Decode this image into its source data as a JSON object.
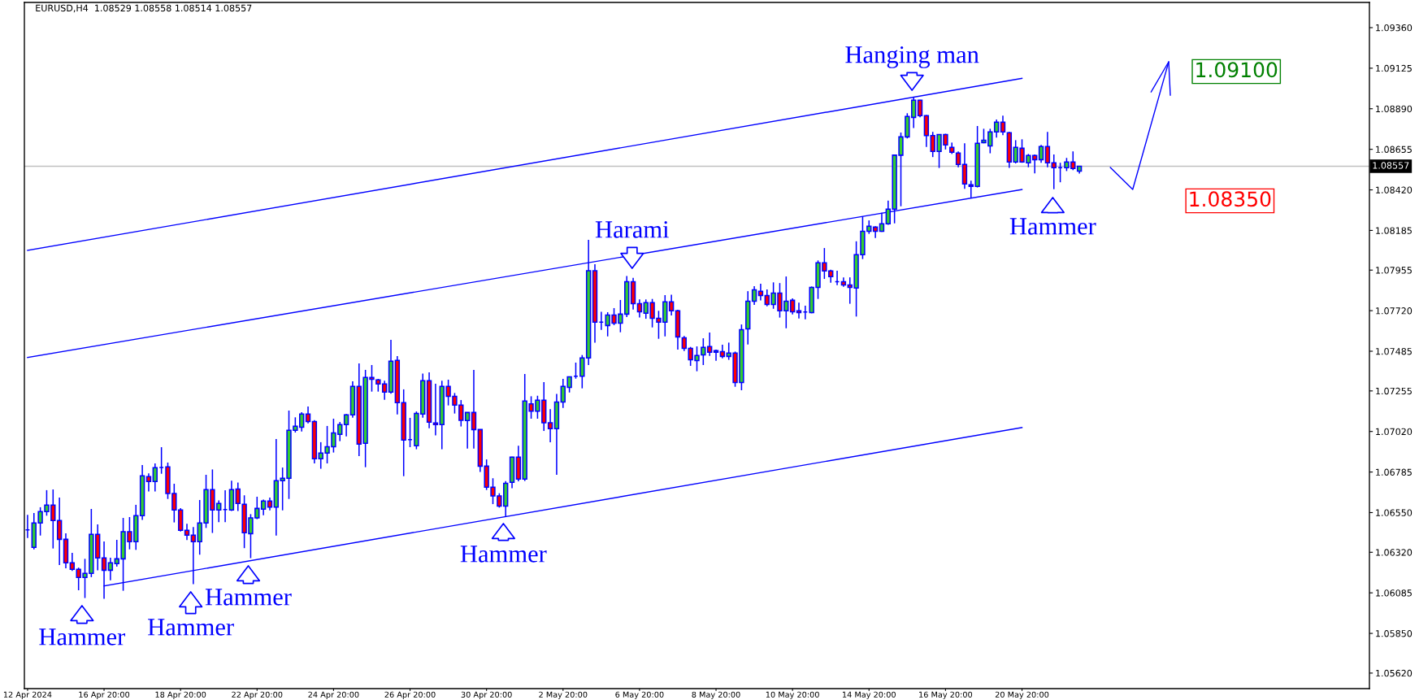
{
  "chart_data": {
    "type": "candlestick",
    "title": "EURUSD,H4  1.08529 1.08558 1.08514 1.08557",
    "color": "#0000ff",
    "categories": [
      "12 Apr 2024",
      null,
      null,
      null,
      null,
      null,
      null,
      null,
      null,
      null,
      null,
      null,
      "16 Apr 20:00",
      null,
      null,
      null,
      null,
      null,
      null,
      null,
      null,
      null,
      null,
      null,
      "18 Apr 20:00",
      null,
      null,
      null,
      null,
      null,
      null,
      null,
      null,
      null,
      null,
      null,
      "22 Apr 20:00",
      null,
      null,
      null,
      null,
      null,
      null,
      null,
      null,
      null,
      null,
      null,
      "24 Apr 20:00",
      null,
      null,
      null,
      null,
      null,
      null,
      null,
      null,
      null,
      null,
      null,
      "26 Apr 20:00",
      null,
      null,
      null,
      null,
      null,
      null,
      null,
      null,
      null,
      null,
      null,
      "30 Apr 20:00",
      null,
      null,
      null,
      null,
      null,
      null,
      null,
      null,
      null,
      null,
      null,
      "2 May 20:00",
      null,
      null,
      null,
      null,
      null,
      null,
      null,
      null,
      null,
      null,
      null,
      "6 May 20:00",
      null,
      null,
      null,
      null,
      null,
      null,
      null,
      null,
      null,
      null,
      null,
      "8 May 20:00",
      null,
      null,
      null,
      null,
      null,
      null,
      null,
      null,
      null,
      null,
      null,
      "10 May 20:00",
      null,
      null,
      null,
      null,
      null,
      null,
      null,
      null,
      null,
      null,
      null,
      "14 May 20:00",
      null,
      null,
      null,
      null,
      null,
      null,
      null,
      null,
      null,
      null,
      null,
      "16 May 20:00",
      null,
      null,
      null,
      null,
      null,
      null,
      null,
      null,
      null,
      null,
      null,
      "20 May 20:00",
      null,
      null,
      null,
      null,
      null,
      null,
      null,
      null,
      null,
      null,
      null,
      null,
      null,
      null,
      null,
      null,
      null,
      null,
      null,
      null,
      null,
      null,
      null,
      null,
      null,
      null,
      null,
      null,
      null,
      null,
      null,
      null,
      null,
      null,
      null,
      null,
      null,
      null,
      null,
      null,
      null,
      null,
      null,
      null,
      null,
      null,
      null,
      null,
      null,
      null,
      null,
      null,
      null,
      null
    ],
    "ohlc": [
      [
        1.0645,
        1.06537,
        1.06403,
        1.0645
      ],
      [
        1.06348,
        1.06548,
        1.06337,
        1.0649
      ],
      [
        1.0649,
        1.06581,
        1.06417,
        1.06556
      ],
      [
        1.06556,
        1.0668,
        1.06532,
        1.06593
      ],
      [
        1.06593,
        1.06684,
        1.06342,
        1.06504
      ],
      [
        1.06504,
        1.06637,
        1.06246,
        1.06395
      ],
      [
        1.06395,
        1.0643,
        1.06227,
        1.06259
      ],
      [
        1.06259,
        1.06317,
        1.06212,
        1.06221
      ],
      [
        1.06221,
        1.06231,
        1.061,
        1.06174
      ],
      [
        1.06174,
        1.06282,
        1.06055,
        1.06198
      ],
      [
        1.06198,
        1.06571,
        1.06176,
        1.06424
      ],
      [
        1.06424,
        1.06482,
        1.06215,
        1.06287
      ],
      [
        1.06287,
        1.06383,
        1.0605,
        1.06216
      ],
      [
        1.06216,
        1.06289,
        1.06158,
        1.06259
      ],
      [
        1.06254,
        1.06392,
        1.06237,
        1.06282
      ],
      [
        1.06282,
        1.06519,
        1.06097,
        1.06439
      ],
      [
        1.06439,
        1.06524,
        1.06337,
        1.06381
      ],
      [
        1.06381,
        1.06595,
        1.06334,
        1.06532
      ],
      [
        1.06532,
        1.06826,
        1.06507,
        1.06763
      ],
      [
        1.06758,
        1.06777,
        1.06672,
        1.0673
      ],
      [
        1.0673,
        1.06835,
        1.06672,
        1.0681
      ],
      [
        1.06811,
        1.06929,
        1.06775,
        1.06811
      ],
      [
        1.06815,
        1.0684,
        1.06629,
        1.06661
      ],
      [
        1.06661,
        1.06717,
        1.06493,
        1.06565
      ],
      [
        1.06565,
        1.06576,
        1.0644,
        1.06447
      ],
      [
        1.06447,
        1.06485,
        1.06391,
        1.06419
      ],
      [
        1.06419,
        1.06466,
        1.06135,
        1.06381
      ],
      [
        1.06381,
        1.06623,
        1.06306,
        1.0649
      ],
      [
        1.0649,
        1.06769,
        1.06461,
        1.06683
      ],
      [
        1.06683,
        1.068,
        1.06432,
        1.06565
      ],
      [
        1.06565,
        1.0662,
        1.06494,
        1.06603
      ],
      [
        1.06568,
        1.0668,
        1.06494,
        1.06568
      ],
      [
        1.06565,
        1.06735,
        1.06559,
        1.06683
      ],
      [
        1.06687,
        1.06724,
        1.06559,
        1.06603
      ],
      [
        1.06598,
        1.0665,
        1.06344,
        1.06433
      ],
      [
        1.06428,
        1.06541,
        1.06286,
        1.06519
      ],
      [
        1.06519,
        1.06642,
        1.06512,
        1.06574
      ],
      [
        1.0657,
        1.06625,
        1.06535,
        1.06617
      ],
      [
        1.06617,
        1.06637,
        1.06563,
        1.06582
      ],
      [
        1.06582,
        1.06976,
        1.06417,
        1.06735
      ],
      [
        1.06735,
        1.06811,
        1.06563,
        1.06749
      ],
      [
        1.06749,
        1.07141,
        1.06629,
        1.07027
      ],
      [
        1.07027,
        1.07102,
        1.07014,
        1.0705
      ],
      [
        1.07045,
        1.07132,
        1.0702,
        1.07121
      ],
      [
        1.07121,
        1.07165,
        1.07067,
        1.07078
      ],
      [
        1.07078,
        1.07086,
        1.06835,
        1.06862
      ],
      [
        1.06862,
        1.06958,
        1.06804,
        1.06895
      ],
      [
        1.06895,
        1.07052,
        1.06835,
        1.06932
      ],
      [
        1.06932,
        1.07094,
        1.06898,
        1.07012
      ],
      [
        1.07003,
        1.07075,
        1.06964,
        1.0706
      ],
      [
        1.0706,
        1.07121,
        1.06992,
        1.07116
      ],
      [
        1.07116,
        1.07311,
        1.071,
        1.07281
      ],
      [
        1.07281,
        1.07414,
        1.06877,
        1.06947
      ],
      [
        1.06951,
        1.07377,
        1.06813,
        1.07333
      ],
      [
        1.07333,
        1.07405,
        1.07251,
        1.07323
      ],
      [
        1.07319,
        1.07325,
        1.07251,
        1.07295
      ],
      [
        1.07295,
        1.07314,
        1.07204,
        1.07248
      ],
      [
        1.07248,
        1.07551,
        1.07239,
        1.07427
      ],
      [
        1.07432,
        1.07457,
        1.07119,
        1.07187
      ],
      [
        1.07187,
        1.07264,
        1.06761,
        1.0697
      ],
      [
        1.06973,
        1.07099,
        1.06929,
        1.06973
      ],
      [
        1.06937,
        1.07136,
        1.06917,
        1.07125
      ],
      [
        1.07121,
        1.07356,
        1.071,
        1.07314
      ],
      [
        1.07314,
        1.07363,
        1.07039,
        1.07074
      ],
      [
        1.07069,
        1.07297,
        1.06997,
        1.0706
      ],
      [
        1.0706,
        1.07314,
        1.06917,
        1.07281
      ],
      [
        1.07281,
        1.0732,
        1.07171,
        1.07224
      ],
      [
        1.07224,
        1.07243,
        1.07124,
        1.07173
      ],
      [
        1.07173,
        1.07202,
        1.07049,
        1.07085
      ],
      [
        1.07083,
        1.0713,
        1.06921,
        1.0713
      ],
      [
        1.0713,
        1.07377,
        1.06921,
        1.07031
      ],
      [
        1.07031,
        1.07031,
        1.06785,
        1.06819
      ],
      [
        1.06819,
        1.06858,
        1.06681,
        1.06697
      ],
      [
        1.06697,
        1.06749,
        1.06599,
        1.06647
      ],
      [
        1.06647,
        1.06662,
        1.06579,
        1.06588
      ],
      [
        1.06588,
        1.06733,
        1.06529,
        1.0672
      ],
      [
        1.06725,
        1.06874,
        1.06691,
        1.06871
      ],
      [
        1.06871,
        1.06937,
        1.06731,
        1.06744
      ],
      [
        1.06744,
        1.07353,
        1.06733,
        1.07196
      ],
      [
        1.0718,
        1.07224,
        1.07094,
        1.07138
      ],
      [
        1.07138,
        1.07227,
        1.07094,
        1.07201
      ],
      [
        1.07201,
        1.07306,
        1.07023,
        1.0707
      ],
      [
        1.0707,
        1.07149,
        1.06957,
        1.07036
      ],
      [
        1.07036,
        1.07238,
        1.06769,
        1.07191
      ],
      [
        1.07191,
        1.07325,
        1.07157,
        1.07281
      ],
      [
        1.07275,
        1.07337,
        1.07246,
        1.07337
      ],
      [
        1.0734,
        1.07419,
        1.07326,
        1.0734
      ],
      [
        1.0734,
        1.07463,
        1.0727,
        1.07446
      ],
      [
        1.07446,
        1.0813,
        1.07405,
        1.07951
      ],
      [
        1.07951,
        1.07989,
        1.07534,
        1.07653
      ],
      [
        1.07653,
        1.07714,
        1.07609,
        1.07653
      ],
      [
        1.07634,
        1.07711,
        1.07571,
        1.07695
      ],
      [
        1.07695,
        1.07735,
        1.07636,
        1.07648
      ],
      [
        1.07648,
        1.07782,
        1.07595,
        1.077
      ],
      [
        1.077,
        1.07921,
        1.07683,
        1.07888
      ],
      [
        1.07888,
        1.0791,
        1.07727,
        1.07761
      ],
      [
        1.07761,
        1.07785,
        1.0768,
        1.07714
      ],
      [
        1.07705,
        1.07785,
        1.07673,
        1.07766
      ],
      [
        1.07766,
        1.07788,
        1.07623,
        1.07676
      ],
      [
        1.07676,
        1.07719,
        1.07557,
        1.07653
      ],
      [
        1.07653,
        1.0781,
        1.07571,
        1.07771
      ],
      [
        1.07771,
        1.07813,
        1.07692,
        1.07719
      ],
      [
        1.07719,
        1.07725,
        1.07494,
        1.07568
      ],
      [
        1.07563,
        1.07573,
        1.07486,
        1.07502
      ],
      [
        1.07502,
        1.0751,
        1.074,
        1.07436
      ],
      [
        1.07431,
        1.07513,
        1.07369,
        1.0746
      ],
      [
        1.07464,
        1.0756,
        1.07405,
        1.07507
      ],
      [
        1.07512,
        1.07593,
        1.07458,
        1.07479
      ],
      [
        1.07479,
        1.07494,
        1.0743,
        1.07488
      ],
      [
        1.07483,
        1.07523,
        1.07444,
        1.07455
      ],
      [
        1.07455,
        1.07535,
        1.07435,
        1.07474
      ],
      [
        1.07474,
        1.07483,
        1.07279,
        1.07304
      ],
      [
        1.07304,
        1.0764,
        1.07259,
        1.0761
      ],
      [
        1.07615,
        1.07833,
        1.07524,
        1.07775
      ],
      [
        1.07775,
        1.07862,
        1.07753,
        1.07841
      ],
      [
        1.07832,
        1.07876,
        1.0778,
        1.07808
      ],
      [
        1.07808,
        1.07843,
        1.07745,
        1.07756
      ],
      [
        1.07756,
        1.07884,
        1.07731,
        1.07822
      ],
      [
        1.07822,
        1.0788,
        1.0768,
        1.07719
      ],
      [
        1.07719,
        1.07918,
        1.07618,
        1.07775
      ],
      [
        1.0778,
        1.07791,
        1.07698,
        1.07714
      ],
      [
        1.07719,
        1.07766,
        1.07675,
        1.07709
      ],
      [
        1.07712,
        1.07749,
        1.0767,
        1.07712
      ],
      [
        1.07709,
        1.0786,
        1.07705,
        1.07855
      ],
      [
        1.07855,
        1.08011,
        1.07788,
        1.07997
      ],
      [
        1.07997,
        1.08083,
        1.07904,
        1.0795
      ],
      [
        1.0795,
        1.07957,
        1.07882,
        1.07917
      ],
      [
        1.07888,
        1.07951,
        1.07868,
        1.07888
      ],
      [
        1.07888,
        1.07913,
        1.07858,
        1.07869
      ],
      [
        1.07869,
        1.07913,
        1.0776,
        1.07855
      ],
      [
        1.07851,
        1.08122,
        1.07686,
        1.08044
      ],
      [
        1.08044,
        1.08267,
        1.08019,
        1.0818
      ],
      [
        1.0818,
        1.08243,
        1.08165,
        1.08209
      ],
      [
        1.08204,
        1.08209,
        1.08141,
        1.0818
      ],
      [
        1.0818,
        1.08287,
        1.08176,
        1.08223
      ],
      [
        1.08223,
        1.08358,
        1.08218,
        1.08308
      ],
      [
        1.08308,
        1.08625,
        1.08226,
        1.08621
      ],
      [
        1.08621,
        1.08752,
        1.08325,
        1.08727
      ],
      [
        1.08727,
        1.08864,
        1.08718,
        1.08845
      ],
      [
        1.0884,
        1.08958,
        1.08778,
        1.08939
      ],
      [
        1.08939,
        1.08942,
        1.0884,
        1.0885
      ],
      [
        1.0885,
        1.08853,
        1.08669,
        1.08735
      ],
      [
        1.08735,
        1.08756,
        1.0861,
        1.08643
      ],
      [
        1.08643,
        1.08741,
        1.08547,
        1.08741
      ],
      [
        1.08741,
        1.08745,
        1.08654,
        1.0868
      ],
      [
        1.08666,
        1.08694,
        1.08628,
        1.08638
      ],
      [
        1.08633,
        1.08643,
        1.08551,
        1.08567
      ],
      [
        1.08567,
        1.0869,
        1.08426,
        1.08454
      ],
      [
        1.08449,
        1.08473,
        1.08374,
        1.0844
      ],
      [
        1.0844,
        1.0879,
        1.08434,
        1.0869
      ],
      [
        1.08694,
        1.08774,
        1.0869,
        1.08708
      ],
      [
        1.08675,
        1.08774,
        1.08632,
        1.08756
      ],
      [
        1.08756,
        1.08828,
        1.08723,
        1.08812
      ],
      [
        1.08812,
        1.0885,
        1.08737,
        1.08756
      ],
      [
        1.08751,
        1.08756,
        1.08547,
        1.08581
      ],
      [
        1.08581,
        1.08708,
        1.08573,
        1.08666
      ],
      [
        1.08661,
        1.08713,
        1.08577,
        1.08581
      ],
      [
        1.08577,
        1.08628,
        1.08551,
        1.08619
      ],
      [
        1.08619,
        1.08625,
        1.08515,
        1.08595
      ],
      [
        1.08595,
        1.0868,
        1.08577,
        1.08671
      ],
      [
        1.08671,
        1.08756,
        1.08551,
        1.08577
      ],
      [
        1.08577,
        1.08625,
        1.08424,
        1.08548
      ],
      [
        1.08548,
        1.08577,
        1.08464,
        1.08548
      ],
      [
        1.08548,
        1.08605,
        1.08529,
        1.08581
      ],
      [
        1.08581,
        1.08643,
        1.08534,
        1.08544
      ],
      [
        1.08529,
        1.08558,
        1.08514,
        1.08557
      ],
      null,
      null,
      null,
      null,
      null,
      null,
      null,
      null,
      null,
      null,
      null,
      null,
      null,
      null,
      null,
      null,
      null,
      null,
      null,
      null,
      null,
      null,
      null,
      null,
      null,
      null,
      null,
      null,
      null,
      null,
      null,
      null,
      null,
      null,
      null,
      null,
      null,
      null,
      null,
      null,
      null,
      null,
      null,
      null,
      null
    ],
    "colors": [
      "#0000ff",
      "#32cd32",
      "#32cd32",
      "#32cd32",
      "#ff0000",
      "#ff0000",
      "#ff0000",
      "#ff0000",
      "#ff0000",
      "#32cd32",
      "#32cd32",
      "#ff0000",
      "#ff0000",
      "#32cd32",
      "#32cd32",
      "#32cd32",
      "#ff0000",
      "#32cd32",
      "#32cd32",
      "#ff0000",
      "#32cd32",
      "#0000ff",
      "#ff0000",
      "#ff0000",
      "#ff0000",
      "#ff0000",
      "#ff0000",
      "#32cd32",
      "#32cd32",
      "#ff0000",
      "#32cd32",
      "#0000ff",
      "#32cd32",
      "#ff0000",
      "#ff0000",
      "#32cd32",
      "#32cd32",
      "#32cd32",
      "#ff0000",
      "#32cd32",
      "#32cd32",
      "#32cd32",
      "#32cd32",
      "#32cd32",
      "#ff0000",
      "#ff0000",
      "#32cd32",
      "#32cd32",
      "#32cd32",
      "#32cd32",
      "#32cd32",
      "#32cd32",
      "#ff0000",
      "#32cd32",
      "#ff0000",
      "#ff0000",
      "#ff0000",
      "#32cd32",
      "#ff0000",
      "#ff0000",
      "#0000ff",
      "#32cd32",
      "#32cd32",
      "#ff0000",
      "#ff0000",
      "#32cd32",
      "#ff0000",
      "#ff0000",
      "#ff0000",
      "#32cd32",
      "#ff0000",
      "#ff0000",
      "#ff0000",
      "#ff0000",
      "#ff0000",
      "#32cd32",
      "#32cd32",
      "#ff0000",
      "#32cd32",
      "#ff0000",
      "#32cd32",
      "#ff0000",
      "#ff0000",
      "#32cd32",
      "#32cd32",
      "#32cd32",
      "#0000ff",
      "#32cd32",
      "#32cd32",
      "#ff0000",
      "#0000ff",
      "#32cd32",
      "#ff0000",
      "#32cd32",
      "#32cd32",
      "#ff0000",
      "#ff0000",
      "#32cd32",
      "#ff0000",
      "#ff0000",
      "#32cd32",
      "#ff0000",
      "#ff0000",
      "#ff0000",
      "#ff0000",
      "#32cd32",
      "#32cd32",
      "#ff0000",
      "#32cd32",
      "#ff0000",
      "#32cd32",
      "#ff0000",
      "#32cd32",
      "#32cd32",
      "#32cd32",
      "#ff0000",
      "#ff0000",
      "#32cd32",
      "#ff0000",
      "#32cd32",
      "#ff0000",
      "#ff0000",
      "#0000ff",
      "#32cd32",
      "#32cd32",
      "#ff0000",
      "#ff0000",
      "#0000ff",
      "#ff0000",
      "#ff0000",
      "#32cd32",
      "#32cd32",
      "#32cd32",
      "#ff0000",
      "#32cd32",
      "#32cd32",
      "#32cd32",
      "#32cd32",
      "#32cd32",
      "#32cd32",
      "#ff0000",
      "#ff0000",
      "#ff0000",
      "#32cd32",
      "#ff0000",
      "#ff0000",
      "#ff0000",
      "#ff0000",
      "#ff0000",
      "#32cd32",
      "#32cd32",
      "#32cd32",
      "#32cd32",
      "#ff0000",
      "#ff0000",
      "#32cd32",
      "#ff0000",
      "#32cd32",
      "#ff0000",
      "#32cd32",
      "#ff0000",
      "#ff0000",
      "#0000ff",
      "#32cd32",
      "#ff0000",
      "#32cd32",
      null,
      null,
      null,
      null,
      null,
      null,
      null,
      null,
      null,
      null,
      null,
      null,
      null,
      null,
      null,
      null,
      null,
      null,
      null,
      null,
      null,
      null,
      null,
      null,
      null,
      null,
      null,
      null,
      null,
      null,
      null,
      null,
      null,
      null,
      null,
      null,
      null,
      null,
      null,
      null,
      null,
      null,
      null,
      null,
      null
    ],
    "series": [
      {
        "type": "line",
        "color": "#0000ff",
        "x": [
          "12 Apr 2024",
          "20 May 20:00"
        ],
        "values": [
          1.08069,
          1.09066
        ]
      },
      {
        "type": "line",
        "color": "#0000ff",
        "x": [
          "12 Apr 2024",
          "20 May 20:00"
        ],
        "values": [
          1.07449,
          1.08422
        ]
      },
      {
        "type": "line",
        "color": "#0000ff",
        "x": [
          "16 Apr 20:00",
          "20 May 20:00"
        ],
        "values": [
          1.06125,
          1.07043
        ]
      }
    ],
    "ref_lines": [
      {
        "axis": "y",
        "value": 1.08557,
        "label": "1.08557",
        "color": "#c0c0c0"
      }
    ],
    "annotations": [
      "Hammer",
      "Hammer",
      "Hammer",
      "Hammer",
      "Hammer",
      "Harami",
      "Hanging man",
      "1.09100",
      "1.08350"
    ],
    "ylim": [
      1.0553,
      1.09506
    ],
    "yticks": [
      {
        "value": 1.0562,
        "label": "1.05620"
      },
      {
        "value": 1.0585,
        "label": "1.05850"
      },
      {
        "value": 1.06085,
        "label": "1.06085"
      },
      {
        "value": 1.0632,
        "label": "1.06320"
      },
      {
        "value": 1.0655,
        "label": "1.06550"
      },
      {
        "value": 1.06785,
        "label": "1.06785"
      },
      {
        "value": 1.0702,
        "label": "1.07020"
      },
      {
        "value": 1.07255,
        "label": "1.07255"
      },
      {
        "value": 1.07485,
        "label": "1.07485"
      },
      {
        "value": 1.0772,
        "label": "1.07720"
      },
      {
        "value": 1.07955,
        "label": "1.07955"
      },
      {
        "value": 1.08185,
        "label": "1.08185"
      },
      {
        "value": 1.0842,
        "label": "1.08420"
      },
      {
        "value": 1.08655,
        "label": "1.08655"
      },
      {
        "value": 1.0889,
        "label": "1.08890"
      },
      {
        "value": 1.09125,
        "label": "1.09125"
      },
      {
        "value": 1.0936,
        "label": "1.09360"
      }
    ]
  }
}
